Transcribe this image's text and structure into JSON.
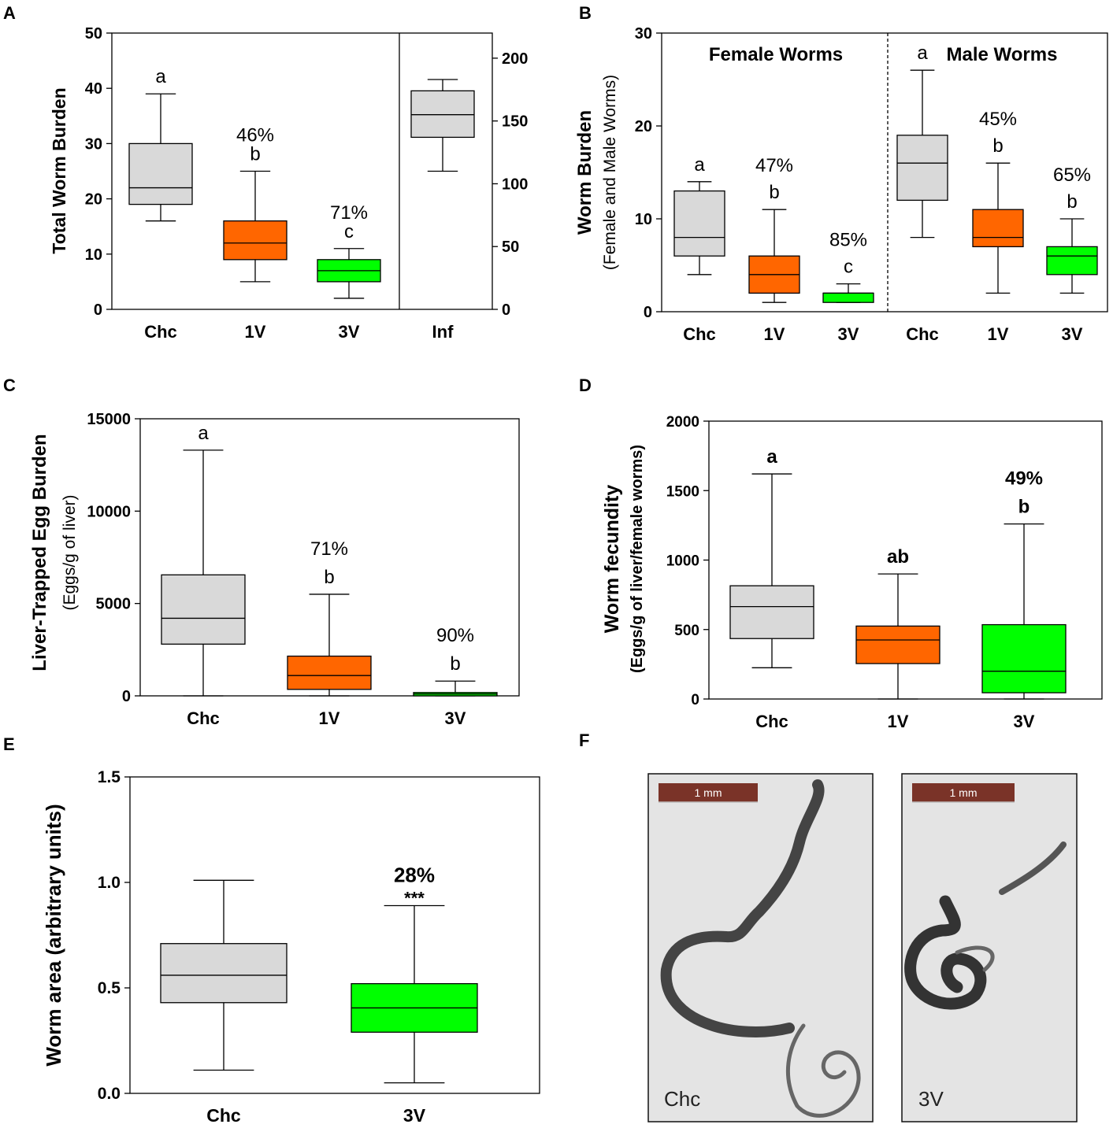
{
  "colors": {
    "chc": "#d9d9d9",
    "v1": "#ff6600",
    "v3": "#00ff00",
    "inf": "#d9d9d9",
    "scale_bar": "#7a3328",
    "micro_bg": "#e3e3e3",
    "worm": "#3f3f3f"
  },
  "chart_data": [
    {
      "panel": "A",
      "type": "box",
      "ylabel": "Total Worm Burden",
      "ylim": [
        0,
        50
      ],
      "yticks": [
        "0",
        "10",
        "20",
        "30",
        "40",
        "50"
      ],
      "y2lim": [
        0,
        220
      ],
      "y2ticks": [
        "0",
        "50",
        "100",
        "150",
        "200"
      ],
      "categories": [
        "Chc",
        "1V",
        "3V",
        "Inf"
      ],
      "boxes": [
        {
          "name": "Chc",
          "color": "chc",
          "axis": "left",
          "min": 16,
          "q1": 19,
          "median": 22,
          "q3": 30,
          "max": 39,
          "label": "a",
          "pct": ""
        },
        {
          "name": "1V",
          "color": "v1",
          "axis": "left",
          "min": 5,
          "q1": 9,
          "median": 12,
          "q3": 16,
          "max": 25,
          "label": "b",
          "pct": "46%"
        },
        {
          "name": "3V",
          "color": "v3",
          "axis": "left",
          "min": 2,
          "q1": 5,
          "median": 7,
          "q3": 9,
          "max": 11,
          "label": "c",
          "pct": "71%"
        },
        {
          "name": "Inf",
          "color": "inf",
          "axis": "right",
          "min": 110,
          "q1": 137,
          "median": 155,
          "q3": 174,
          "max": 183,
          "label": "",
          "pct": ""
        }
      ]
    },
    {
      "panel": "B",
      "type": "box",
      "ylabel": "Worm Burden",
      "ylabel2": "(Female and Male Worms)",
      "ylim": [
        0,
        30
      ],
      "yticks": [
        "0",
        "10",
        "20",
        "30"
      ],
      "group_labels": [
        "Female Worms",
        "Male Worms"
      ],
      "categories": [
        "Chc",
        "1V",
        "3V",
        "Chc",
        "1V",
        "3V"
      ],
      "boxes": [
        {
          "name": "Chc",
          "group": "Female Worms",
          "color": "chc",
          "min": 4,
          "q1": 6,
          "median": 8,
          "q3": 13,
          "max": 14,
          "label": "a",
          "pct": ""
        },
        {
          "name": "1V",
          "group": "Female Worms",
          "color": "v1",
          "min": 1,
          "q1": 2,
          "median": 4,
          "q3": 6,
          "max": 11,
          "label": "b",
          "pct": "47%"
        },
        {
          "name": "3V",
          "group": "Female Worms",
          "color": "v3",
          "min": 1,
          "q1": 1,
          "median": 2,
          "q3": 2,
          "max": 3,
          "label": "c",
          "pct": "85%"
        },
        {
          "name": "Chc",
          "group": "Male Worms",
          "color": "chc",
          "min": 8,
          "q1": 12,
          "median": 16,
          "q3": 19,
          "max": 26,
          "label": "a",
          "pct": ""
        },
        {
          "name": "1V",
          "group": "Male Worms",
          "color": "v1",
          "min": 2,
          "q1": 7,
          "median": 8,
          "q3": 11,
          "max": 16,
          "label": "b",
          "pct": "45%"
        },
        {
          "name": "3V",
          "group": "Male Worms",
          "color": "v3",
          "min": 2,
          "q1": 4,
          "median": 6,
          "q3": 7,
          "max": 10,
          "label": "b",
          "pct": "65%"
        }
      ]
    },
    {
      "panel": "C",
      "type": "box",
      "ylabel": "Liver-Trapped Egg Burden",
      "ylabel2": "(Eggs/g of liver)",
      "ylim": [
        0,
        15000
      ],
      "yticks": [
        "0",
        "5000",
        "10000",
        "15000"
      ],
      "categories": [
        "Chc",
        "1V",
        "3V"
      ],
      "boxes": [
        {
          "name": "Chc",
          "color": "chc",
          "min": 0,
          "q1": 2800,
          "median": 4200,
          "q3": 6550,
          "max": 13300,
          "label": "a",
          "pct": ""
        },
        {
          "name": "1V",
          "color": "v1",
          "min": 0,
          "q1": 350,
          "median": 1100,
          "q3": 2150,
          "max": 5500,
          "label": "b",
          "pct": "71%"
        },
        {
          "name": "3V",
          "color": "v3",
          "min": 0,
          "q1": 0,
          "median": 100,
          "q3": 180,
          "max": 800,
          "label": "b",
          "pct": "90%"
        }
      ]
    },
    {
      "panel": "D",
      "type": "box",
      "ylabel": "Worm fecundity",
      "ylabel2": "(Eggs/g of liver/female worms)",
      "ylim": [
        0,
        2000
      ],
      "yticks": [
        "0",
        "500",
        "1000",
        "1500",
        "2000"
      ],
      "categories": [
        "Chc",
        "1V",
        "3V"
      ],
      "boxes": [
        {
          "name": "Chc",
          "color": "chc",
          "min": 225,
          "q1": 435,
          "median": 665,
          "q3": 815,
          "max": 1620,
          "label": "a",
          "pct": ""
        },
        {
          "name": "1V",
          "color": "v1",
          "min": 0,
          "q1": 255,
          "median": 425,
          "q3": 525,
          "max": 900,
          "label": "ab",
          "pct": ""
        },
        {
          "name": "3V",
          "color": "v3",
          "min": 0,
          "q1": 45,
          "median": 200,
          "q3": 535,
          "max": 1260,
          "label": "b",
          "pct": "49%"
        }
      ]
    },
    {
      "panel": "E",
      "type": "box",
      "ylabel": "Worm area (arbitrary units)",
      "ylim": [
        0,
        1.5
      ],
      "yticks": [
        "0.0",
        "0.5",
        "1.0",
        "1.5"
      ],
      "categories": [
        "Chc",
        "3V"
      ],
      "boxes": [
        {
          "name": "Chc",
          "color": "chc",
          "min": 0.11,
          "q1": 0.43,
          "median": 0.56,
          "q3": 0.71,
          "max": 1.01,
          "label": "",
          "pct": ""
        },
        {
          "name": "3V",
          "color": "v3",
          "min": 0.05,
          "q1": 0.29,
          "median": 0.405,
          "q3": 0.52,
          "max": 0.89,
          "label": "***",
          "pct": "28%"
        }
      ]
    }
  ],
  "panel_f": {
    "letter": "F",
    "images": [
      {
        "caption": "Chc",
        "scale": "1 mm"
      },
      {
        "caption": "3V",
        "scale": "1 mm"
      }
    ]
  }
}
